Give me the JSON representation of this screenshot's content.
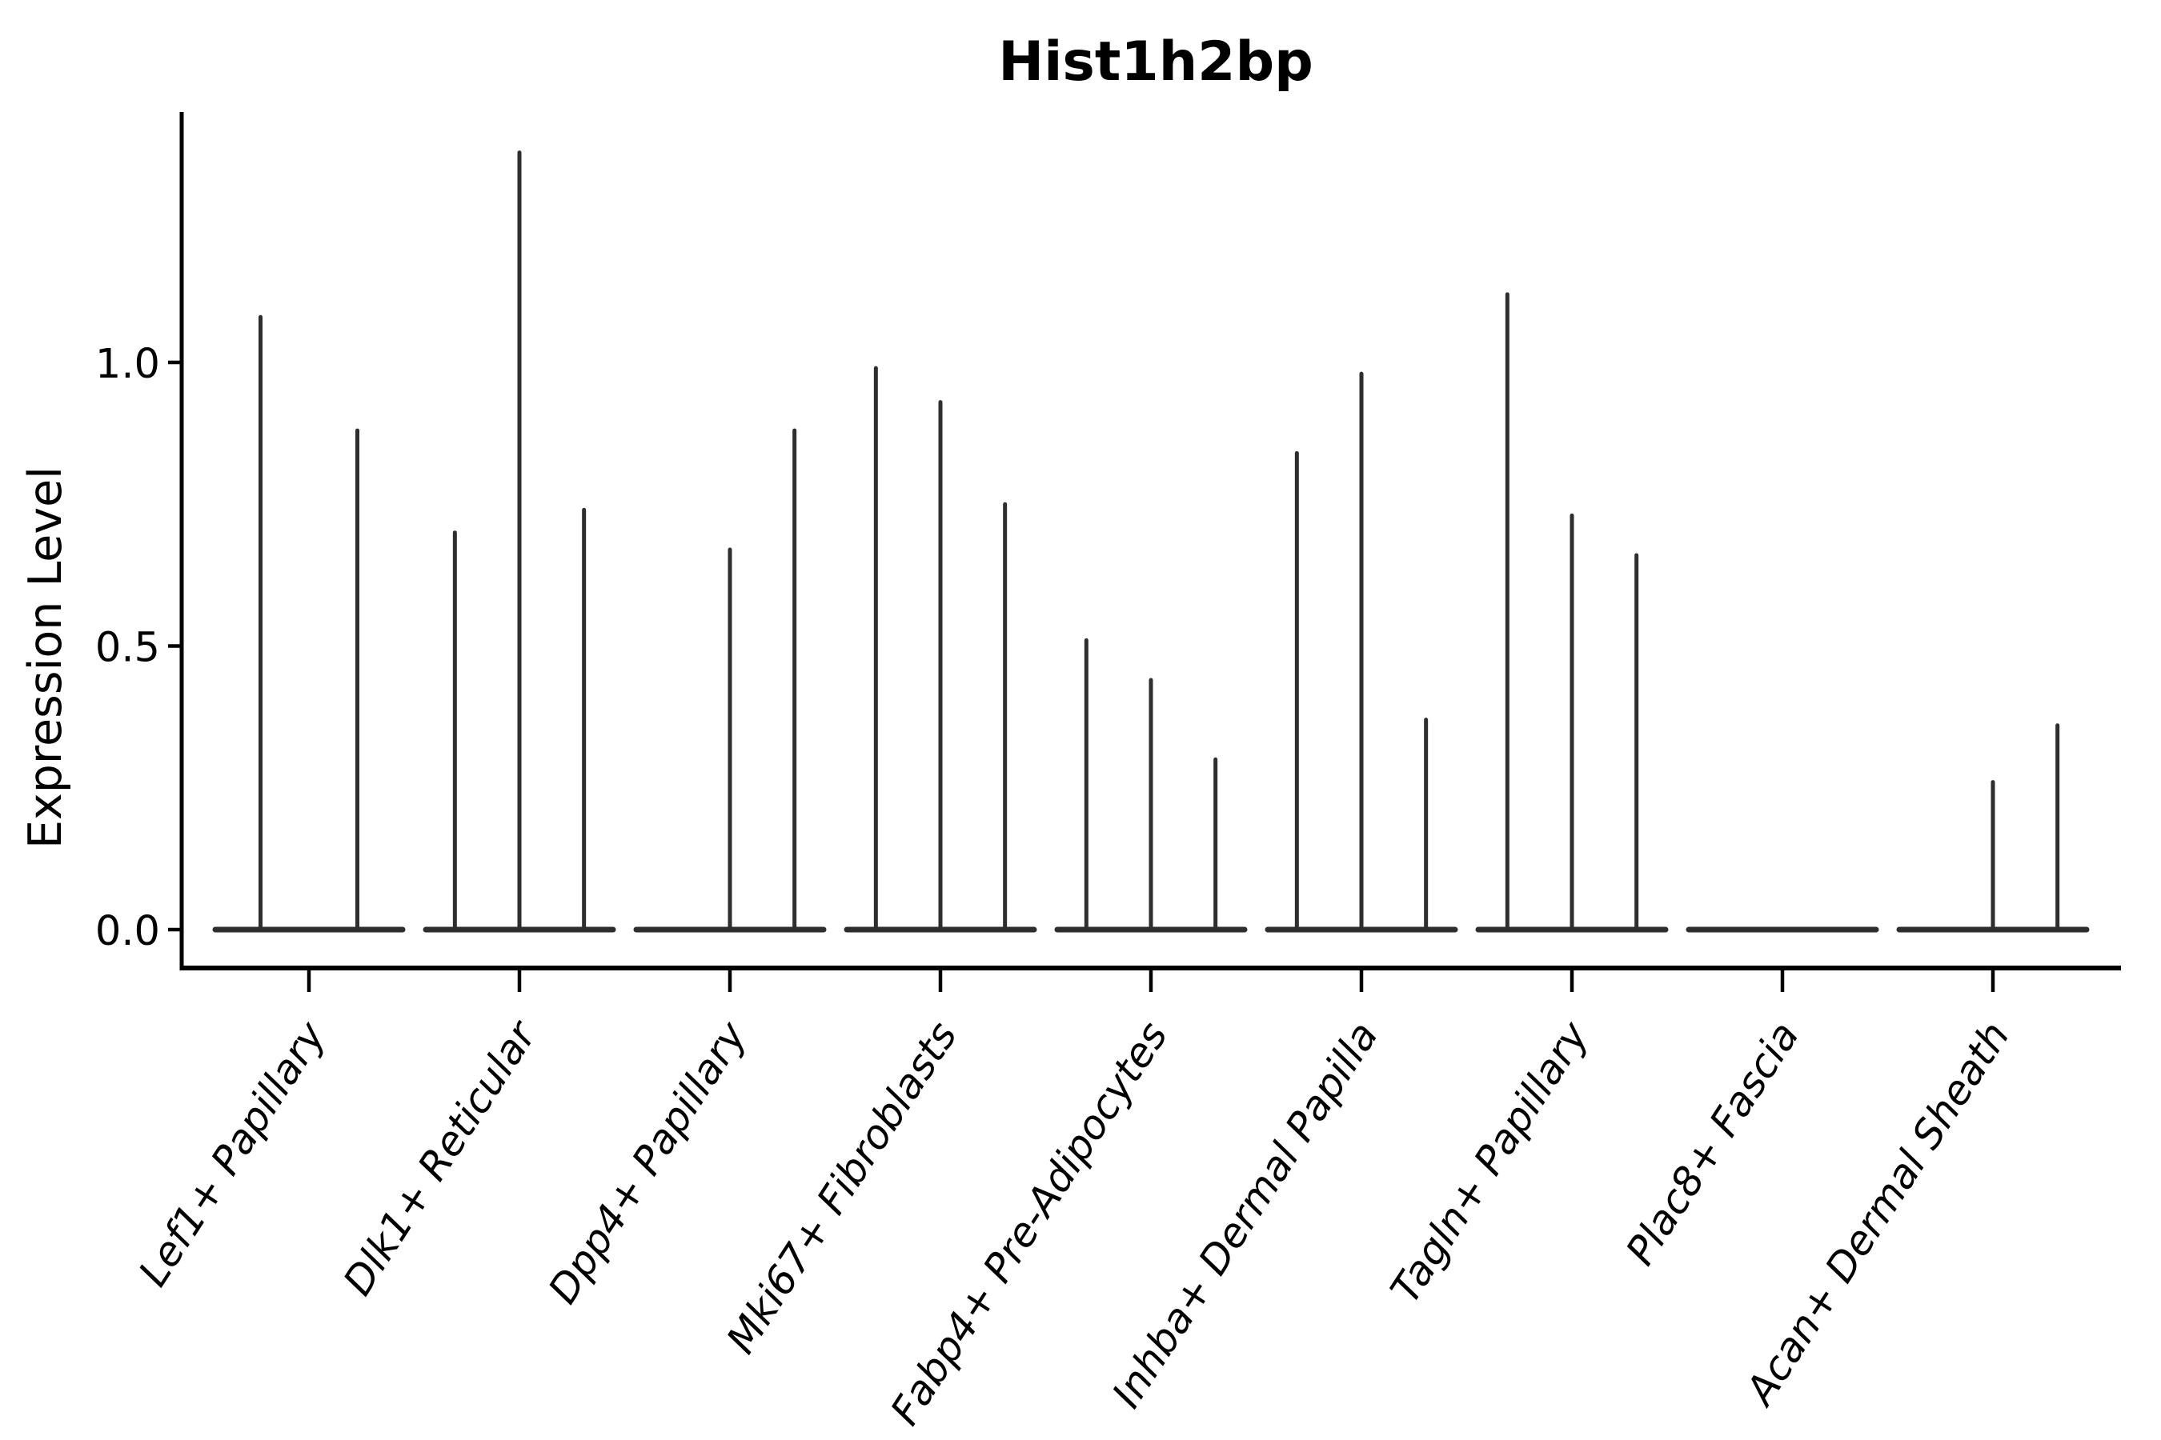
{
  "figure": {
    "title": "Hist1h2bp",
    "background": "#ffffff"
  },
  "chart_data": {
    "type": "violin",
    "title": "Hist1h2bp",
    "xlabel": "",
    "ylabel": "Expression Level",
    "ylim": [
      0,
      1.44
    ],
    "yticks": [
      0.0,
      0.5,
      1.0
    ],
    "ytick_labels": [
      "0.0",
      "0.5",
      "1.0"
    ],
    "grid": false,
    "legend": "none",
    "categories": [
      "Lef1+ Papillary",
      "Dlk1+ Reticular",
      "Dpp4+ Papillary",
      "Mki67+ Fibroblasts",
      "Fabp4+ Pre-Adipocytes",
      "Inhba+ Dermal Papilla",
      "Tagln+ Papillary",
      "Plac8+ Fascia",
      "Acan+ Dermal Sheath"
    ],
    "groups": [
      {
        "category": "Lef1+ Papillary",
        "n_violins": 2,
        "peak_values": [
          1.08,
          0.88
        ]
      },
      {
        "category": "Dlk1+ Reticular",
        "n_violins": 3,
        "peak_values": [
          0.7,
          1.37,
          0.74
        ]
      },
      {
        "category": "Dpp4+ Papillary",
        "n_violins": 3,
        "peak_values": [
          0,
          0.67,
          0.88
        ]
      },
      {
        "category": "Mki67+ Fibroblasts",
        "n_violins": 3,
        "peak_values": [
          0.99,
          0.93,
          0.75
        ]
      },
      {
        "category": "Fabp4+ Pre-Adipocytes",
        "n_violins": 3,
        "peak_values": [
          0.51,
          0.44,
          0.3
        ]
      },
      {
        "category": "Inhba+ Dermal Papilla",
        "n_violins": 3,
        "peak_values": [
          0.84,
          0.98,
          0.37
        ]
      },
      {
        "category": "Tagln+ Papillary",
        "n_violins": 3,
        "peak_values": [
          1.12,
          0.73,
          0.66
        ]
      },
      {
        "category": "Plac8+ Fascia",
        "n_violins": 3,
        "peak_values": [
          0,
          0,
          0
        ]
      },
      {
        "category": "Acan+ Dermal Sheath",
        "n_violins": 3,
        "peak_values": [
          0,
          0.26,
          0.36
        ]
      }
    ],
    "description": "Violin plot; all violins are collapsed flat at 0 with thin vertical spikes marking maximum expression outliers.",
    "style": {
      "violin_line_color": "#2e2e2e",
      "axis_color": "#000000",
      "text_color": "#000000",
      "background": "#ffffff"
    }
  }
}
